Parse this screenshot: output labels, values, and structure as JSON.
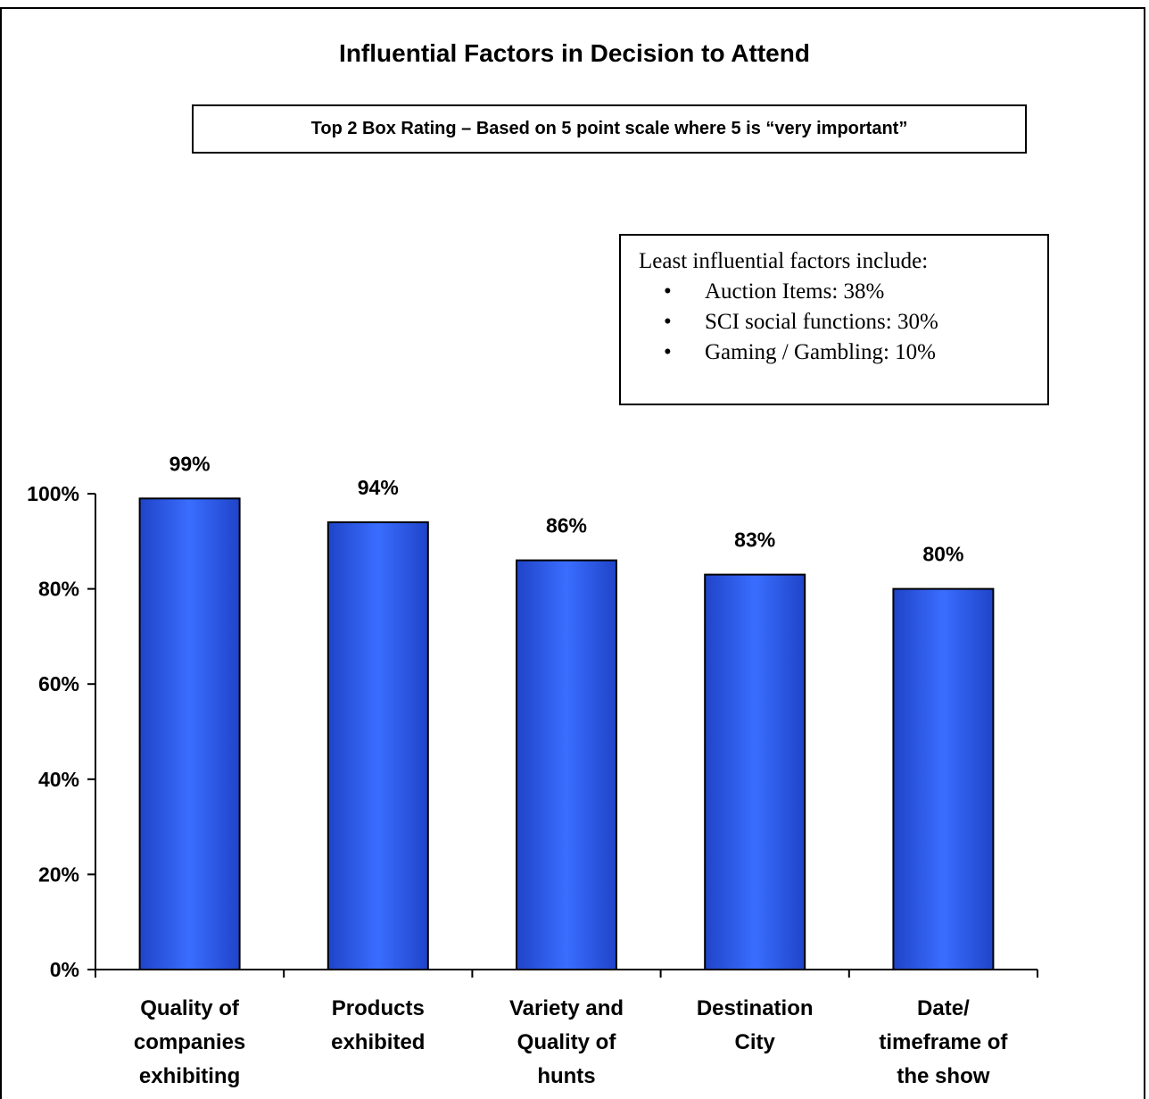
{
  "chart_data": {
    "type": "bar",
    "title": "Influential Factors in Decision to Attend",
    "subtitle": "Top 2 Box Rating – Based on 5 point scale where 5 is “very important”",
    "categories": [
      [
        "Quality of",
        "companies",
        "exhibiting"
      ],
      [
        "Products",
        "exhibited"
      ],
      [
        "Variety and",
        "Quality of",
        "hunts"
      ],
      [
        "Destination",
        "City"
      ],
      [
        "Date/",
        "timeframe of",
        "the show"
      ]
    ],
    "values": [
      99,
      94,
      86,
      83,
      80
    ],
    "value_labels": [
      "99%",
      "94%",
      "86%",
      "83%",
      "80%"
    ],
    "ylim": [
      0,
      100
    ],
    "yticks": [
      "0%",
      "20%",
      "40%",
      "60%",
      "80%",
      "100%"
    ],
    "ytick_values": [
      0,
      20,
      40,
      60,
      80,
      100
    ],
    "grid": false,
    "bar_color": "#3366ff"
  },
  "note": {
    "heading": "Least influential factors include:",
    "items": [
      "Auction Items: 38%",
      "SCI social functions: 30%",
      "Gaming / Gambling: 10%"
    ],
    "bullet": "•"
  }
}
